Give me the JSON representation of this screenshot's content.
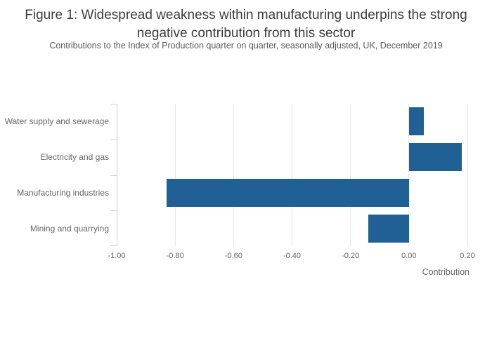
{
  "chart_data": {
    "type": "bar",
    "orientation": "horizontal",
    "title": "Figure 1: Widespread weakness within manufacturing underpins the strong negative contribution from this sector",
    "subtitle": "Contributions to the Index of Production quarter on quarter, seasonally adjusted, UK, December 2019",
    "categories": [
      "Water supply and sewerage",
      "Electricity and gas",
      "Manufacturing industries",
      "Mining and quarrying"
    ],
    "values": [
      0.05,
      0.18,
      -0.83,
      -0.14
    ],
    "xlabel": "Contribution",
    "ylabel": "",
    "xlim": [
      -1.0,
      0.2
    ],
    "xticks": [
      -1.0,
      -0.8,
      -0.6,
      -0.4,
      -0.2,
      0.0,
      0.2
    ],
    "xtick_labels": [
      "-1.00",
      "-0.80",
      "-0.60",
      "-0.40",
      "-0.20",
      "0.00",
      "0.20"
    ],
    "grid": true,
    "legend": false,
    "bar_color": "#206095"
  },
  "colors": {
    "bar": "#206095",
    "gridline": "#e6e6e6",
    "axis_line": "#c4d2e2",
    "axis_text": "#666666",
    "title_text": "#3b3b3b",
    "subtitle_text": "#595959",
    "background": "#ffffff"
  }
}
